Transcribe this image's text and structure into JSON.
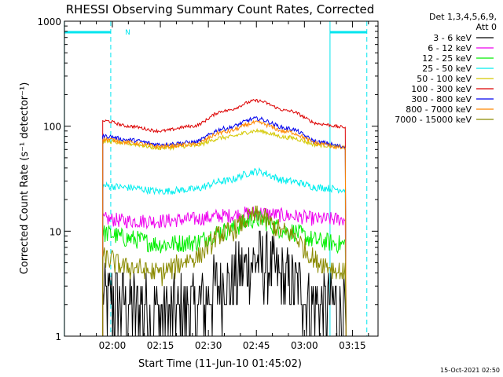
{
  "chart_data": {
    "type": "line",
    "title": "RHESSI Observing Summary Count Rates, Corrected",
    "xlabel": "Start Time (11-Jun-10 01:45:02)",
    "ylabel": "Corrected Count Rate (s⁻¹ detector⁻¹)",
    "yscale": "log",
    "ylim": [
      1,
      1000
    ],
    "xlim": [
      "01:45:02",
      "03:23:00"
    ],
    "x_tick_labels": [
      "02:00",
      "02:15",
      "02:30",
      "02:45",
      "03:00",
      "03:15"
    ],
    "y_tick_labels": [
      "1",
      "10",
      "100",
      "1000"
    ],
    "legend_position": "right",
    "detector_info": [
      "Det 1,3,4,5,6,9,",
      "Att 0"
    ],
    "timestamp": "15-Oct-2021 02:50",
    "annotations": [
      {
        "text": "N",
        "time": "02:02",
        "color": "#00e5ee"
      }
    ],
    "night_markers": {
      "color": "#00e5ee",
      "solid_lines": [
        "01:45:00",
        "03:08:00"
      ],
      "dashed_lines": [
        "01:59:30",
        "03:19:30"
      ],
      "bars_at_top": [
        [
          "01:45:00",
          "01:59:30"
        ],
        [
          "03:08:00",
          "03:19:30"
        ]
      ]
    },
    "time_points": [
      "01:58",
      "02:05",
      "02:15",
      "02:25",
      "02:35",
      "02:45",
      "02:55",
      "03:05",
      "03:12"
    ],
    "series": [
      {
        "name": "3 - 6 keV",
        "color": "#000000",
        "values": [
          2.4,
          2.0,
          1.6,
          1.8,
          3.0,
          5.2,
          3.2,
          2.0,
          1.8
        ]
      },
      {
        "name": "6 - 12 keV",
        "color": "#ee00ee",
        "values": [
          13,
          12.5,
          12.5,
          13,
          14,
          15,
          14,
          13,
          13
        ]
      },
      {
        "name": "12 - 25 keV",
        "color": "#00ee00",
        "values": [
          9.5,
          8.5,
          7.5,
          7.8,
          10,
          13,
          10,
          8,
          7.5
        ]
      },
      {
        "name": "25 - 50 keV",
        "color": "#00eeee",
        "values": [
          27,
          26,
          24,
          25,
          30,
          37,
          30,
          26,
          25
        ]
      },
      {
        "name": "50 - 100 keV",
        "color": "#d4c800",
        "values": [
          72,
          68,
          62,
          65,
          78,
          90,
          78,
          66,
          63
        ]
      },
      {
        "name": "100 - 300 keV",
        "color": "#dd0000",
        "values": [
          112,
          100,
          90,
          100,
          140,
          175,
          140,
          105,
          98
        ]
      },
      {
        "name": "300 - 800 keV",
        "color": "#0000ee",
        "values": [
          80,
          74,
          67,
          70,
          95,
          118,
          95,
          70,
          64
        ]
      },
      {
        "name": "800 - 7000 keV",
        "color": "#ff8800",
        "values": [
          75,
          70,
          64,
          67,
          88,
          108,
          88,
          68,
          62
        ]
      },
      {
        "name": "7000 - 15000 keV",
        "color": "#8a8a00",
        "values": [
          5.5,
          4.5,
          4.0,
          5.5,
          9.5,
          14,
          9.5,
          5.0,
          4.0
        ]
      }
    ]
  }
}
